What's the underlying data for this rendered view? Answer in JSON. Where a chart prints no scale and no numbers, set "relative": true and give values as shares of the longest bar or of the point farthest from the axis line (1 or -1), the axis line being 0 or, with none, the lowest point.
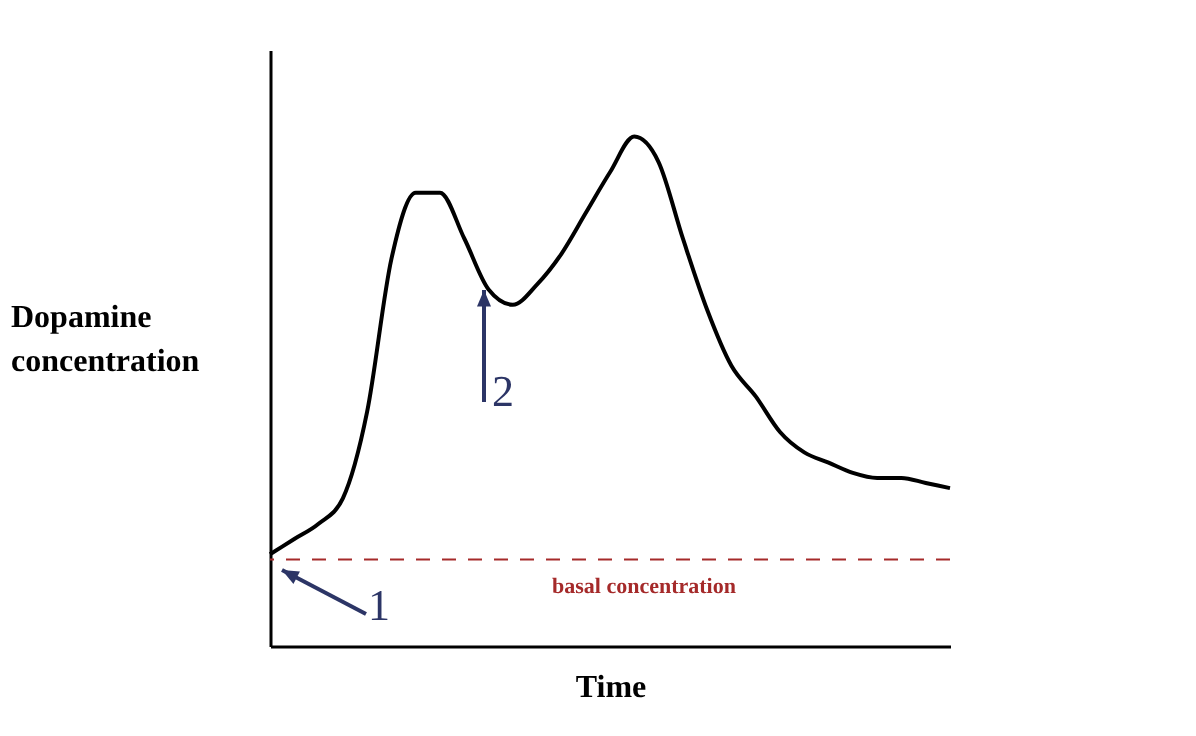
{
  "chart_data": {
    "type": "line",
    "relative": true,
    "xlabel": "Time",
    "ylabel": "Dopamine concentration",
    "categories": [
      null,
      null,
      null,
      null,
      null,
      null,
      null,
      null,
      null,
      null,
      null,
      null,
      null,
      null,
      null,
      null,
      null,
      null,
      null,
      null,
      null,
      null,
      null,
      null,
      null,
      null,
      null,
      null,
      null
    ],
    "series": [
      {
        "color": "#000000",
        "values": [
          0.18,
          0.21,
          0.24,
          0.29,
          0.46,
          0.76,
          0.89,
          0.89,
          0.8,
          0.7,
          0.67,
          0.71,
          0.77,
          0.85,
          0.93,
          1.0,
          0.95,
          0.8,
          0.66,
          0.55,
          0.49,
          0.42,
          0.38,
          0.36,
          0.34,
          0.33,
          0.33,
          0.32,
          0.31
        ]
      }
    ],
    "ref_lines": [
      {
        "axis": "y",
        "value": 0.17,
        "label": "basal concentration",
        "color": "#a52a2a",
        "line_style": "dashed"
      }
    ],
    "annotations": [
      "1",
      "2"
    ],
    "marker": "none",
    "line_style": "solid"
  }
}
